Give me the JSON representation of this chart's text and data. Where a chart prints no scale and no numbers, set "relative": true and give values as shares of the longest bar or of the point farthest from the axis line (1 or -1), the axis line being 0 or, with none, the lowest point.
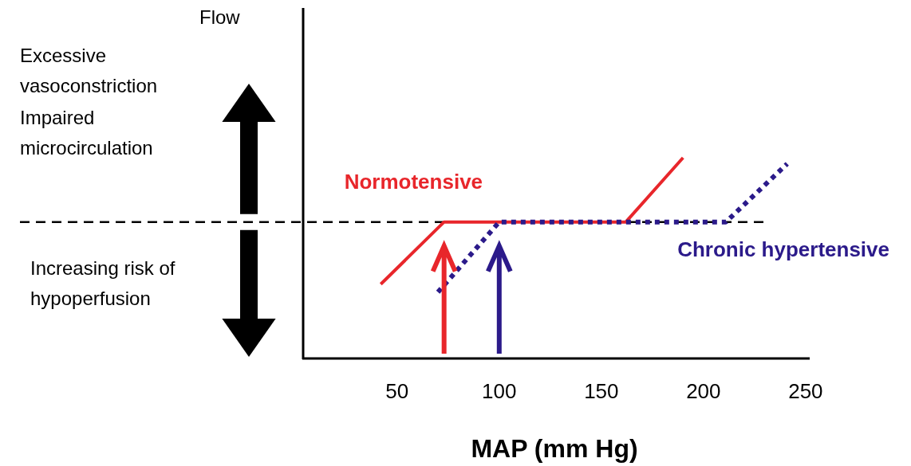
{
  "chart_data": {
    "type": "line",
    "relative": true,
    "xlabel": "MAP (mm Hg)",
    "xlim": [
      4,
      252
    ],
    "xticks": [
      50,
      100,
      150,
      200,
      250
    ],
    "series": [
      {
        "name": "Normotensive",
        "color": "#e8262b",
        "line_style": "solid",
        "x": [
          42,
          73,
          162,
          190
        ],
        "values": [
          0.37,
          0.68,
          0.68,
          1
        ]
      },
      {
        "name": "Chronic hypertensive",
        "color": "#2b1a8a",
        "line_style": "dotted",
        "x": [
          70,
          100,
          211,
          241
        ],
        "values": [
          0.33,
          0.68,
          0.68,
          0.97
        ]
      }
    ],
    "ref_lines": [
      {
        "axis": "y",
        "value": 0.68,
        "color": "#000000",
        "line_style": "dashed"
      }
    ],
    "annotations": [
      "Flow",
      "Excessive\nvasoconstriction",
      "Impaired\nmicrocirculation",
      "Increasing risk of\nhypoperfusion"
    ],
    "marker": "none"
  }
}
